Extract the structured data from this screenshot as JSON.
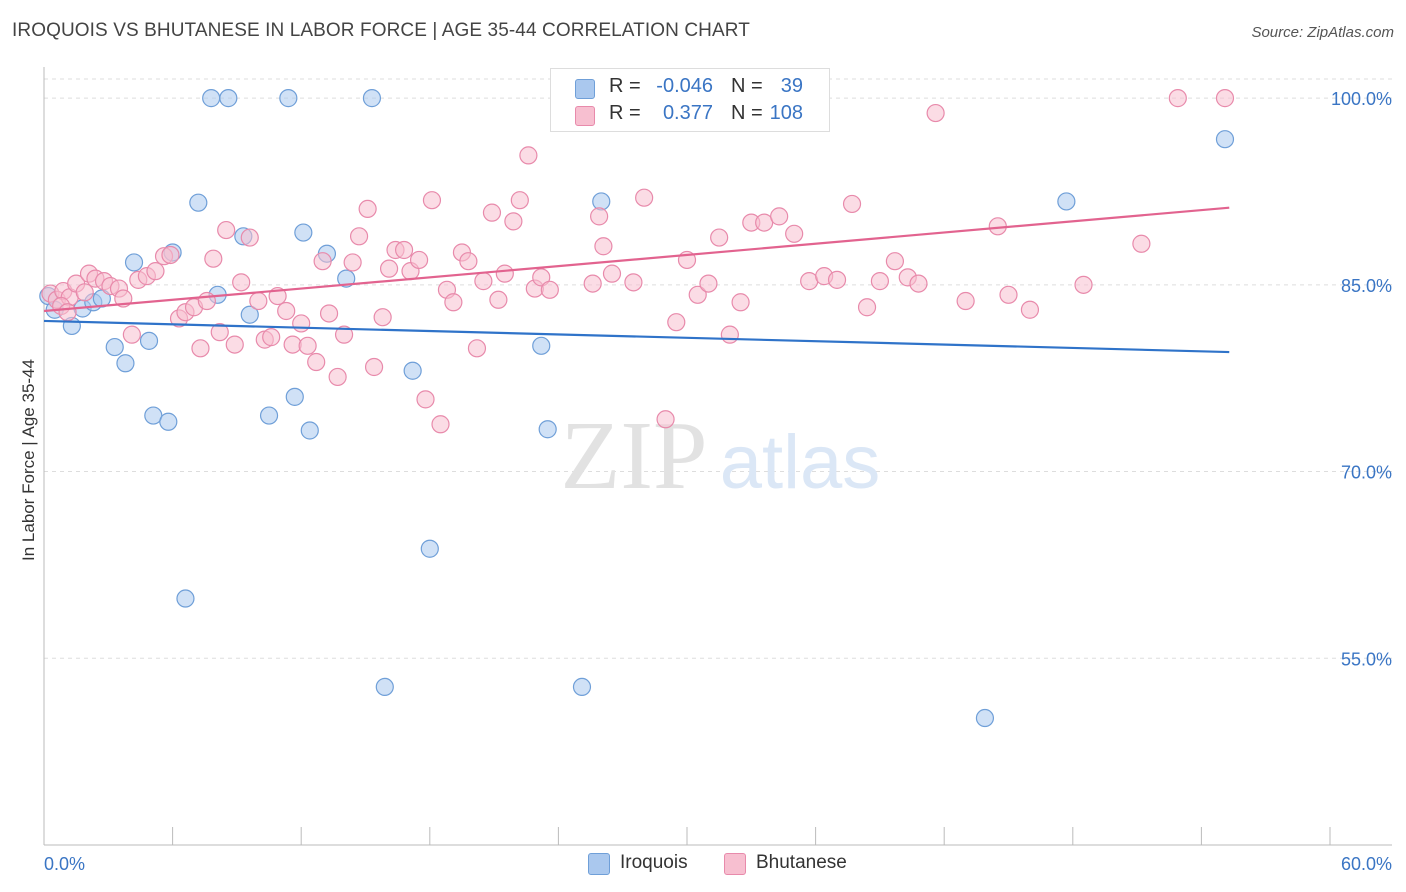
{
  "header": {
    "title": "IROQUOIS VS BHUTANESE IN LABOR FORCE | AGE 35-44 CORRELATION CHART",
    "source": "Source: ZipAtlas.com"
  },
  "watermark": {
    "zip": "ZIP",
    "atlas": "atlas"
  },
  "legend": {
    "rows": [
      {
        "r_label": "R =",
        "r_value": "-0.046",
        "n_label": "N =",
        "n_value": "39"
      },
      {
        "r_label": "R =",
        "r_value": "0.377",
        "n_label": "N =",
        "n_value": "108"
      }
    ]
  },
  "bottom_legend": {
    "series_a": "Iroquois",
    "series_b": "Bhutanese"
  },
  "colors": {
    "iroquois_fill": "#aac8ee",
    "iroquois_stroke": "#6f9fd8",
    "iroquois_line": "#2f73c9",
    "bhutanese_fill": "#f7bfd0",
    "bhutanese_stroke": "#e88aab",
    "bhutanese_line": "#e2638f",
    "tick_label": "#3a75c4",
    "grid": "#dddddd"
  },
  "chart_data": {
    "type": "scatter",
    "title": "IROQUOIS VS BHUTANESE IN LABOR FORCE | AGE 35-44 CORRELATION CHART",
    "xlabel": "",
    "ylabel": "In Labor Force | Age 35-44",
    "xlim": [
      0,
      60
    ],
    "ylim": [
      40,
      102.5
    ],
    "x_tick_labels": [
      {
        "value": 0,
        "label": "0.0%"
      },
      {
        "value": 60,
        "label": "60.0%"
      }
    ],
    "y_tick_labels": [
      {
        "value": 100,
        "label": "100.0%"
      },
      {
        "value": 85,
        "label": "85.0%"
      },
      {
        "value": 70,
        "label": "70.0%"
      },
      {
        "value": 55,
        "label": "55.0%"
      }
    ],
    "grid": true,
    "legend_position": "top-center",
    "series": [
      {
        "name": "Iroquois",
        "r": -0.046,
        "n": 39,
        "trend": {
          "x": [
            0,
            55.3
          ],
          "y": [
            82.1,
            79.6
          ]
        },
        "points": [
          [
            0.2,
            84.1
          ],
          [
            0.5,
            83.0
          ],
          [
            1.3,
            81.7
          ],
          [
            1.8,
            83.1
          ],
          [
            2.3,
            83.6
          ],
          [
            2.7,
            83.9
          ],
          [
            3.3,
            80.0
          ],
          [
            3.8,
            78.7
          ],
          [
            4.2,
            86.8
          ],
          [
            4.9,
            80.5
          ],
          [
            5.1,
            74.5
          ],
          [
            5.8,
            74.0
          ],
          [
            6.0,
            87.6
          ],
          [
            6.6,
            59.8
          ],
          [
            7.2,
            91.6
          ],
          [
            7.8,
            100.0
          ],
          [
            8.1,
            84.2
          ],
          [
            8.6,
            100.0
          ],
          [
            9.3,
            88.9
          ],
          [
            9.6,
            82.6
          ],
          [
            10.5,
            74.5
          ],
          [
            11.4,
            100.0
          ],
          [
            11.7,
            76.0
          ],
          [
            12.1,
            89.2
          ],
          [
            12.4,
            73.3
          ],
          [
            13.2,
            87.5
          ],
          [
            14.1,
            85.5
          ],
          [
            15.3,
            100.0
          ],
          [
            15.9,
            52.7
          ],
          [
            17.2,
            78.1
          ],
          [
            18.0,
            63.8
          ],
          [
            23.2,
            80.1
          ],
          [
            23.5,
            73.4
          ],
          [
            25.1,
            52.7
          ],
          [
            26.0,
            91.7
          ],
          [
            26.4,
            100.0
          ],
          [
            43.9,
            50.2
          ],
          [
            47.7,
            91.7
          ],
          [
            55.1,
            96.7
          ]
        ]
      },
      {
        "name": "Bhutanese",
        "r": 0.377,
        "n": 108,
        "trend": {
          "x": [
            0,
            55.3
          ],
          "y": [
            82.9,
            91.2
          ]
        },
        "points": [
          [
            0.3,
            84.3
          ],
          [
            0.6,
            83.8
          ],
          [
            0.9,
            84.5
          ],
          [
            1.2,
            84.0
          ],
          [
            1.5,
            85.1
          ],
          [
            1.9,
            84.4
          ],
          [
            2.1,
            85.9
          ],
          [
            2.4,
            85.5
          ],
          [
            2.8,
            85.3
          ],
          [
            3.1,
            84.9
          ],
          [
            3.5,
            84.7
          ],
          [
            3.7,
            83.9
          ],
          [
            4.1,
            81.0
          ],
          [
            4.4,
            85.4
          ],
          [
            4.8,
            85.7
          ],
          [
            5.2,
            86.1
          ],
          [
            5.6,
            87.3
          ],
          [
            5.9,
            87.4
          ],
          [
            6.3,
            82.3
          ],
          [
            6.6,
            82.8
          ],
          [
            7.0,
            83.2
          ],
          [
            7.3,
            79.9
          ],
          [
            7.6,
            83.7
          ],
          [
            7.9,
            87.1
          ],
          [
            8.2,
            81.2
          ],
          [
            8.5,
            89.4
          ],
          [
            8.9,
            80.2
          ],
          [
            9.2,
            85.2
          ],
          [
            9.6,
            88.8
          ],
          [
            10.0,
            83.7
          ],
          [
            10.3,
            80.6
          ],
          [
            10.6,
            80.8
          ],
          [
            10.9,
            84.1
          ],
          [
            11.3,
            82.9
          ],
          [
            11.6,
            80.2
          ],
          [
            12.0,
            81.9
          ],
          [
            12.3,
            80.1
          ],
          [
            12.7,
            78.8
          ],
          [
            13.0,
            86.9
          ],
          [
            13.3,
            82.7
          ],
          [
            13.7,
            77.6
          ],
          [
            14.0,
            81.0
          ],
          [
            14.4,
            86.8
          ],
          [
            14.7,
            88.9
          ],
          [
            15.1,
            91.1
          ],
          [
            15.4,
            78.4
          ],
          [
            15.8,
            82.4
          ],
          [
            16.1,
            86.3
          ],
          [
            16.4,
            87.8
          ],
          [
            16.8,
            87.8
          ],
          [
            17.1,
            86.1
          ],
          [
            17.5,
            87.0
          ],
          [
            17.8,
            75.8
          ],
          [
            18.1,
            91.8
          ],
          [
            18.5,
            73.8
          ],
          [
            18.8,
            84.6
          ],
          [
            19.1,
            83.6
          ],
          [
            19.5,
            87.6
          ],
          [
            19.8,
            86.9
          ],
          [
            20.2,
            79.9
          ],
          [
            20.5,
            85.3
          ],
          [
            20.9,
            90.8
          ],
          [
            21.2,
            83.8
          ],
          [
            21.5,
            85.9
          ],
          [
            21.9,
            90.1
          ],
          [
            22.2,
            91.8
          ],
          [
            22.6,
            95.4
          ],
          [
            22.9,
            84.7
          ],
          [
            23.2,
            85.6
          ],
          [
            23.6,
            84.6
          ],
          [
            25.6,
            85.1
          ],
          [
            25.9,
            90.5
          ],
          [
            26.1,
            88.1
          ],
          [
            26.5,
            85.9
          ],
          [
            27.5,
            85.2
          ],
          [
            28.0,
            92.0
          ],
          [
            29.0,
            74.2
          ],
          [
            29.5,
            82.0
          ],
          [
            30.0,
            87.0
          ],
          [
            30.5,
            84.2
          ],
          [
            31.0,
            85.1
          ],
          [
            31.5,
            88.8
          ],
          [
            32.0,
            81.0
          ],
          [
            32.5,
            83.6
          ],
          [
            33.0,
            90.0
          ],
          [
            33.6,
            90.0
          ],
          [
            34.3,
            90.5
          ],
          [
            35.0,
            89.1
          ],
          [
            35.7,
            85.3
          ],
          [
            36.4,
            85.7
          ],
          [
            37.0,
            85.4
          ],
          [
            37.7,
            91.5
          ],
          [
            38.4,
            83.2
          ],
          [
            39.0,
            85.3
          ],
          [
            39.7,
            86.9
          ],
          [
            40.3,
            85.6
          ],
          [
            40.8,
            85.1
          ],
          [
            41.6,
            98.8
          ],
          [
            43.0,
            83.7
          ],
          [
            44.5,
            89.7
          ],
          [
            45.0,
            84.2
          ],
          [
            46.0,
            83.0
          ],
          [
            48.5,
            85.0
          ],
          [
            51.2,
            88.3
          ],
          [
            52.9,
            100.0
          ],
          [
            55.1,
            100.0
          ],
          [
            0.8,
            83.3
          ],
          [
            1.1,
            82.8
          ]
        ]
      }
    ]
  }
}
